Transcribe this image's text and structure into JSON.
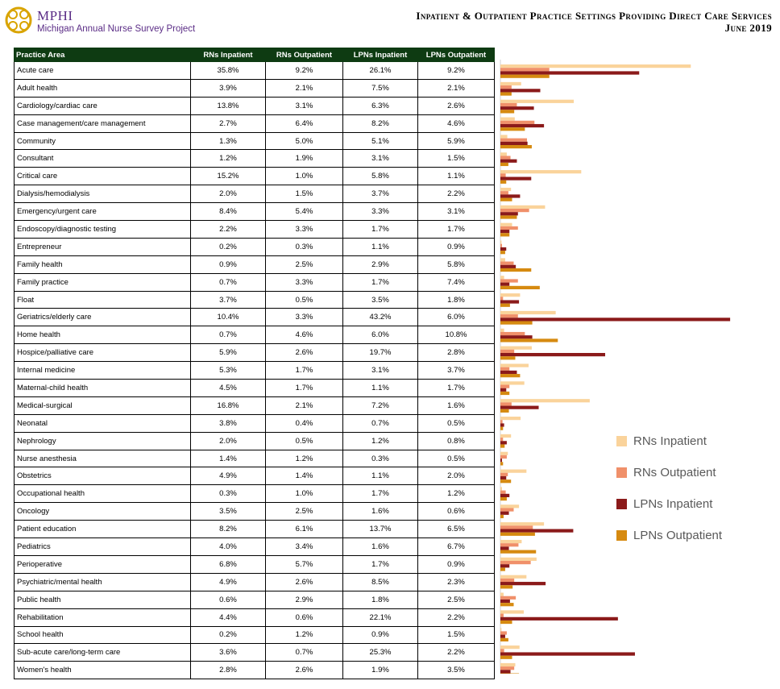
{
  "logo": {
    "name": "MPHI",
    "subtitle": "Michigan Annual Nurse Survey Project"
  },
  "title": {
    "line1": "Inpatient & Outpatient Practice Settings Providing Direct Care Services",
    "line2": "June 2019"
  },
  "table": {
    "headers": [
      "Practice Area",
      "RNs Inpatient",
      "RNs Outpatient",
      "LPNs Inpatient",
      "LPNs Outpatient"
    ],
    "rows": [
      [
        "Acute care",
        "35.8%",
        "9.2%",
        "26.1%",
        "9.2%"
      ],
      [
        "Adult health",
        "3.9%",
        "2.1%",
        "7.5%",
        "2.1%"
      ],
      [
        "Cardiology/cardiac care",
        "13.8%",
        "3.1%",
        "6.3%",
        "2.6%"
      ],
      [
        "Case management/care management",
        "2.7%",
        "6.4%",
        "8.2%",
        "4.6%"
      ],
      [
        "Community",
        "1.3%",
        "5.0%",
        "5.1%",
        "5.9%"
      ],
      [
        "Consultant",
        "1.2%",
        "1.9%",
        "3.1%",
        "1.5%"
      ],
      [
        "Critical care",
        "15.2%",
        "1.0%",
        "5.8%",
        "1.1%"
      ],
      [
        "Dialysis/hemodialysis",
        "2.0%",
        "1.5%",
        "3.7%",
        "2.2%"
      ],
      [
        "Emergency/urgent care",
        "8.4%",
        "5.4%",
        "3.3%",
        "3.1%"
      ],
      [
        "Endoscopy/diagnostic testing",
        "2.2%",
        "3.3%",
        "1.7%",
        "1.7%"
      ],
      [
        "Entrepreneur",
        "0.2%",
        "0.3%",
        "1.1%",
        "0.9%"
      ],
      [
        "Family health",
        "0.9%",
        "2.5%",
        "2.9%",
        "5.8%"
      ],
      [
        "Family practice",
        "0.7%",
        "3.3%",
        "1.7%",
        "7.4%"
      ],
      [
        "Float",
        "3.7%",
        "0.5%",
        "3.5%",
        "1.8%"
      ],
      [
        "Geriatrics/elderly care",
        "10.4%",
        "3.3%",
        "43.2%",
        "6.0%"
      ],
      [
        "Home health",
        "0.7%",
        "4.6%",
        "6.0%",
        "10.8%"
      ],
      [
        "Hospice/palliative care",
        "5.9%",
        "2.6%",
        "19.7%",
        "2.8%"
      ],
      [
        "Internal medicine",
        "5.3%",
        "1.7%",
        "3.1%",
        "3.7%"
      ],
      [
        "Maternal-child health",
        "4.5%",
        "1.7%",
        "1.1%",
        "1.7%"
      ],
      [
        "Medical-surgical",
        "16.8%",
        "2.1%",
        "7.2%",
        "1.6%"
      ],
      [
        "Neonatal",
        "3.8%",
        "0.4%",
        "0.7%",
        "0.5%"
      ],
      [
        "Nephrology",
        "2.0%",
        "0.5%",
        "1.2%",
        "0.8%"
      ],
      [
        "Nurse anesthesia",
        "1.4%",
        "1.2%",
        "0.3%",
        "0.5%"
      ],
      [
        "Obstetrics",
        "4.9%",
        "1.4%",
        "1.1%",
        "2.0%"
      ],
      [
        "Occupational health",
        "0.3%",
        "1.0%",
        "1.7%",
        "1.2%"
      ],
      [
        "Oncology",
        "3.5%",
        "2.5%",
        "1.6%",
        "0.6%"
      ],
      [
        "Patient education",
        "8.2%",
        "6.1%",
        "13.7%",
        "6.5%"
      ],
      [
        "Pediatrics",
        "4.0%",
        "3.4%",
        "1.6%",
        "6.7%"
      ],
      [
        "Perioperative",
        "6.8%",
        "5.7%",
        "1.7%",
        "0.9%"
      ],
      [
        "Psychiatric/mental health",
        "4.9%",
        "2.6%",
        "8.5%",
        "2.3%"
      ],
      [
        "Public health",
        "0.6%",
        "2.9%",
        "1.8%",
        "2.5%"
      ],
      [
        "Rehabilitation",
        "4.4%",
        "0.6%",
        "22.1%",
        "2.2%"
      ],
      [
        "School health",
        "0.2%",
        "1.2%",
        "0.9%",
        "1.5%"
      ],
      [
        "Sub-acute care/long-term care",
        "3.6%",
        "0.7%",
        "25.3%",
        "2.2%"
      ],
      [
        "Women's health",
        "2.8%",
        "2.6%",
        "1.9%",
        "3.5%"
      ]
    ]
  },
  "chart_data": {
    "type": "bar",
    "orientation": "horizontal",
    "categories": [
      "Acute care",
      "Adult health",
      "Cardiology/cardiac care",
      "Case management/care management",
      "Community",
      "Consultant",
      "Critical care",
      "Dialysis/hemodialysis",
      "Emergency/urgent care",
      "Endoscopy/diagnostic testing",
      "Entrepreneur",
      "Family health",
      "Family practice",
      "Float",
      "Geriatrics/elderly care",
      "Home health",
      "Hospice/palliative care",
      "Internal medicine",
      "Maternal-child health",
      "Medical-surgical",
      "Neonatal",
      "Nephrology",
      "Nurse anesthesia",
      "Obstetrics",
      "Occupational health",
      "Oncology",
      "Patient education",
      "Pediatrics",
      "Perioperative",
      "Psychiatric/mental health",
      "Public health",
      "Rehabilitation",
      "School health",
      "Sub-acute care/long-term care",
      "Women's health"
    ],
    "series": [
      {
        "name": "RNs Inpatient",
        "color": "#fad39b",
        "values": [
          35.8,
          3.9,
          13.8,
          2.7,
          1.3,
          1.2,
          15.2,
          2.0,
          8.4,
          2.2,
          0.2,
          0.9,
          0.7,
          3.7,
          10.4,
          0.7,
          5.9,
          5.3,
          4.5,
          16.8,
          3.8,
          2.0,
          1.4,
          4.9,
          0.3,
          3.5,
          8.2,
          4.0,
          6.8,
          4.9,
          0.6,
          4.4,
          0.2,
          3.6,
          2.8
        ]
      },
      {
        "name": "RNs Outpatient",
        "color": "#f0906a",
        "values": [
          9.2,
          2.1,
          3.1,
          6.4,
          5.0,
          1.9,
          1.0,
          1.5,
          5.4,
          3.3,
          0.3,
          2.5,
          3.3,
          0.5,
          3.3,
          4.6,
          2.6,
          1.7,
          1.7,
          2.1,
          0.4,
          0.5,
          1.2,
          1.4,
          1.0,
          2.5,
          6.1,
          3.4,
          5.7,
          2.6,
          2.9,
          0.6,
          1.2,
          0.7,
          2.6
        ]
      },
      {
        "name": "LPNs Inpatient",
        "color": "#8b1a1a",
        "values": [
          26.1,
          7.5,
          6.3,
          8.2,
          5.1,
          3.1,
          5.8,
          3.7,
          3.3,
          1.7,
          1.1,
          2.9,
          1.7,
          3.5,
          43.2,
          6.0,
          19.7,
          3.1,
          1.1,
          7.2,
          0.7,
          1.2,
          0.3,
          1.1,
          1.7,
          1.6,
          13.7,
          1.6,
          1.7,
          8.5,
          1.8,
          22.1,
          0.9,
          25.3,
          1.9
        ]
      },
      {
        "name": "LPNs Outpatient",
        "color": "#d68a10",
        "values": [
          9.2,
          2.1,
          2.6,
          4.6,
          5.9,
          1.5,
          1.1,
          2.2,
          3.1,
          1.7,
          0.9,
          5.8,
          7.4,
          1.8,
          6.0,
          10.8,
          2.8,
          3.7,
          1.7,
          1.6,
          0.5,
          0.8,
          0.5,
          2.0,
          1.2,
          0.6,
          6.5,
          6.7,
          0.9,
          2.3,
          2.5,
          2.2,
          1.5,
          2.2,
          3.5
        ]
      }
    ],
    "legend": "right"
  }
}
